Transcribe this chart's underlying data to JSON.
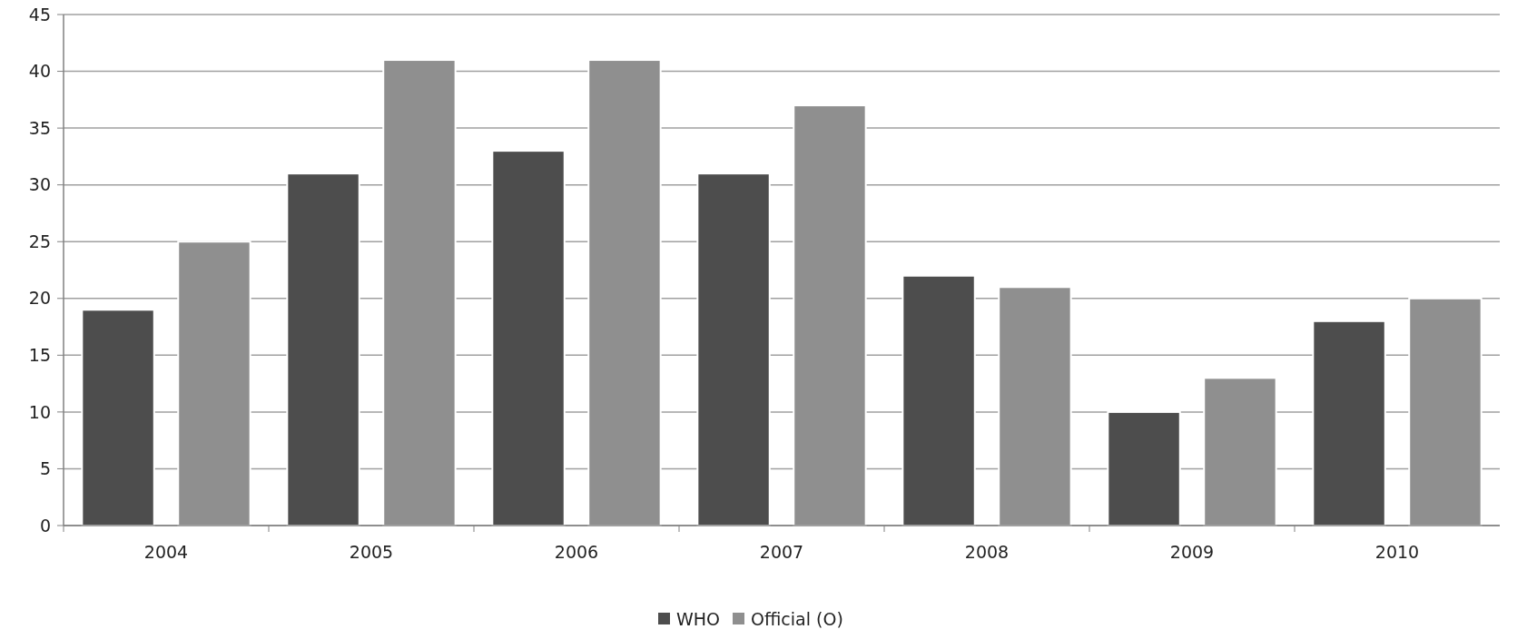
{
  "chart_data": {
    "type": "bar",
    "categories": [
      "2004",
      "2005",
      "2006",
      "2007",
      "2008",
      "2009",
      "2010"
    ],
    "series": [
      {
        "name": "WHO",
        "color": "#4d4d4d",
        "values": [
          19,
          31,
          33,
          31,
          22,
          10,
          18
        ]
      },
      {
        "name": "Official (O)",
        "color": "#8f8f8f",
        "values": [
          25,
          41,
          41,
          37,
          21,
          13,
          20
        ]
      }
    ],
    "ylim": [
      0,
      45
    ],
    "yticks": [
      0,
      5,
      10,
      15,
      20,
      25,
      30,
      35,
      40,
      45
    ],
    "grid": "y",
    "legend": "bottom"
  }
}
